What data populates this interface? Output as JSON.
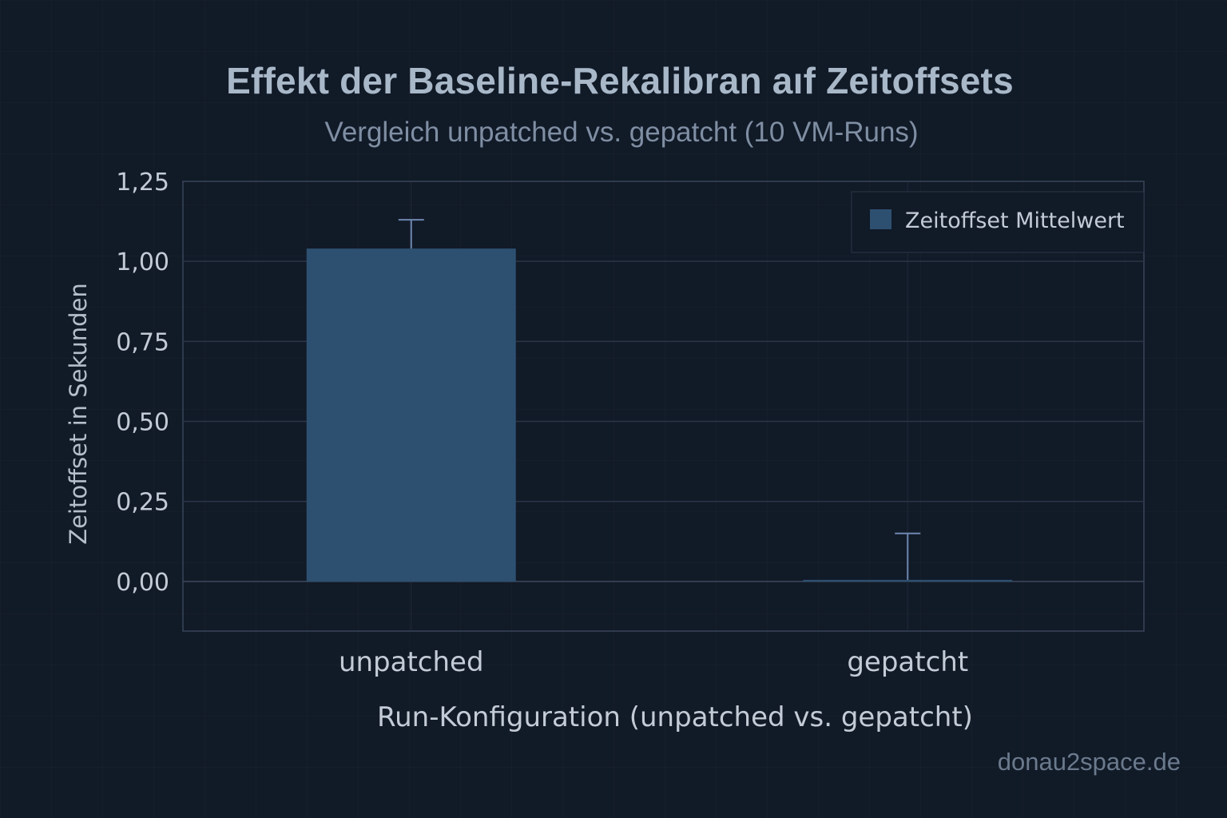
{
  "title": "Effekt der Baseline-Rekalibran aıf Zeitoffsets",
  "subtitle": "Vergleich unpatched vs. gepatcht (10 VM-Runs)",
  "watermark": "donau2space.de",
  "colors": {
    "background": "#111a27",
    "bar": "#2d5071",
    "error_bar": "#6f87b0",
    "grid": "#2a3647",
    "text": "#c3ccd6"
  },
  "chart_data": {
    "type": "bar",
    "categories": [
      "unpatched",
      "gepatcht"
    ],
    "values": [
      1.04,
      0.005
    ],
    "error_upper": [
      1.13,
      0.15
    ],
    "xlabel": "Run-Konfiguration (unpatched vs. gepatcht)",
    "ylabel": "Zeitoffset in Sekunden",
    "ylim": [
      -0.155,
      1.25
    ],
    "yticks": [
      0,
      0.25,
      0.5,
      0.75,
      1.0,
      1.25
    ],
    "ytick_labels": [
      "0,00",
      "0,25",
      "0,50",
      "0,75",
      "1,00",
      "1,25"
    ],
    "grid": true,
    "legend": {
      "position": "top-right",
      "entries": [
        "Zeitoffset Mittelwert"
      ]
    }
  }
}
